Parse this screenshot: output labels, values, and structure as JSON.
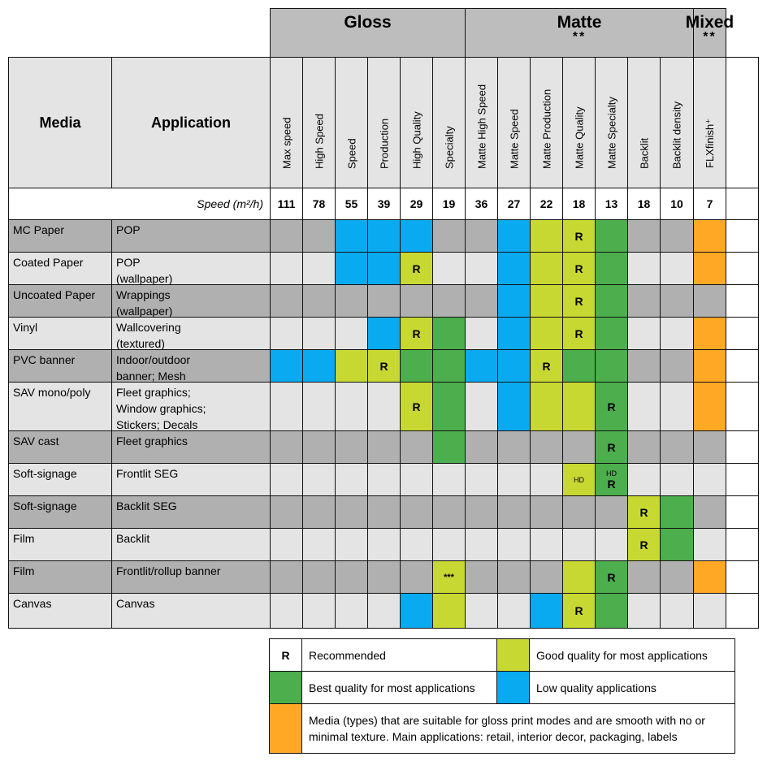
{
  "colors": {
    "gray_dark": "#b0b0b0",
    "gray_light": "#e4e4e4",
    "white": "#ffffff",
    "blue": "#0aaaf0",
    "lime": "#c8d833",
    "green": "#4cae4c",
    "orange": "#ffa826",
    "header_group": "#bdbdbd"
  },
  "groups": [
    {
      "label": "Gloss",
      "sub": ""
    },
    {
      "label": "Matte",
      "sub": "**"
    },
    {
      "label": "Mixed",
      "sub": "**"
    }
  ],
  "headers": {
    "media": "Media",
    "application": "Application"
  },
  "columns": [
    "Max speed",
    "High Speed",
    "Speed",
    "Production",
    "High Quality",
    "Specialty",
    "Matte High Speed",
    "Matte Speed",
    "Matte Production",
    "Matte Quality",
    "Matte Specialty",
    "Backlit",
    "Backlit density",
    "FLXfinish⁺",
    ""
  ],
  "speed_label": "Speed (m²/h)",
  "speeds": [
    "111",
    "78",
    "55",
    "39",
    "29",
    "19",
    "36",
    "27",
    "22",
    "18",
    "13",
    "18",
    "10",
    "7",
    ""
  ],
  "rows": [
    {
      "media": "MC Paper",
      "application": [
        "POP"
      ],
      "shade": "dark",
      "cells": [
        "",
        "",
        "blue",
        "blue",
        "blue",
        "",
        "",
        "blue",
        "lime",
        "lime",
        "green",
        "",
        "",
        "orange",
        "white"
      ],
      "marks": [
        "",
        "",
        "",
        "",
        "",
        "",
        "",
        "",
        "",
        "R",
        "",
        "",
        "",
        "",
        ""
      ]
    },
    {
      "media": "Coated Paper",
      "application": [
        "POP",
        "(wallpaper)"
      ],
      "shade": "light",
      "cells": [
        "",
        "",
        "blue",
        "blue",
        "lime",
        "",
        "",
        "blue",
        "lime",
        "lime",
        "green",
        "",
        "",
        "orange",
        "white"
      ],
      "marks": [
        "",
        "",
        "",
        "",
        "R",
        "",
        "",
        "",
        "",
        "R",
        "",
        "",
        "",
        "",
        ""
      ]
    },
    {
      "media": "Uncoated Paper",
      "application": [
        "Wrappings",
        "(wallpaper)"
      ],
      "shade": "dark",
      "cells": [
        "",
        "",
        "",
        "",
        "",
        "",
        "",
        "blue",
        "lime",
        "lime",
        "green",
        "",
        "",
        "",
        "white"
      ],
      "marks": [
        "",
        "",
        "",
        "",
        "",
        "",
        "",
        "",
        "",
        "R",
        "",
        "",
        "",
        "",
        ""
      ]
    },
    {
      "media": "Vinyl",
      "application": [
        "Wallcovering",
        "(textured)"
      ],
      "shade": "light",
      "cells": [
        "",
        "",
        "",
        "blue",
        "lime",
        "green",
        "",
        "blue",
        "lime",
        "lime",
        "green",
        "",
        "",
        "orange",
        "white"
      ],
      "marks": [
        "",
        "",
        "",
        "",
        "R",
        "",
        "",
        "",
        "",
        "R",
        "",
        "",
        "",
        "",
        ""
      ]
    },
    {
      "media": "PVC banner",
      "application": [
        "Indoor/outdoor",
        "banner; Mesh"
      ],
      "shade": "dark",
      "cells": [
        "blue",
        "blue",
        "lime",
        "lime",
        "green",
        "green",
        "blue",
        "blue",
        "lime",
        "green",
        "green",
        "",
        "",
        "orange",
        "white"
      ],
      "marks": [
        "",
        "",
        "",
        "R",
        "",
        "",
        "",
        "",
        "R",
        "",
        "",
        "",
        "",
        "",
        ""
      ]
    },
    {
      "media": "SAV mono/poly",
      "application": [
        "Fleet graphics;",
        "Window graphics;",
        "Stickers; Decals"
      ],
      "shade": "light",
      "cells": [
        "",
        "",
        "",
        "",
        "lime",
        "green",
        "",
        "blue",
        "lime",
        "lime",
        "green",
        "",
        "",
        "orange",
        "white"
      ],
      "marks": [
        "",
        "",
        "",
        "",
        "R",
        "",
        "",
        "",
        "",
        "",
        "R",
        "",
        "",
        "",
        ""
      ]
    },
    {
      "media": "SAV cast",
      "application": [
        "Fleet graphics"
      ],
      "shade": "dark",
      "cells": [
        "",
        "",
        "",
        "",
        "",
        "green",
        "",
        "",
        "",
        "",
        "green",
        "",
        "",
        "",
        "white"
      ],
      "marks": [
        "",
        "",
        "",
        "",
        "",
        "",
        "",
        "",
        "",
        "",
        "R",
        "",
        "",
        "",
        ""
      ]
    },
    {
      "media": "Soft-signage",
      "application": [
        "Frontlit SEG"
      ],
      "shade": "light",
      "cells": [
        "",
        "",
        "",
        "",
        "",
        "",
        "",
        "",
        "",
        "lime",
        "green",
        "",
        "",
        "",
        "white"
      ],
      "marks": [
        "",
        "",
        "",
        "",
        "",
        "",
        "",
        "",
        "",
        "HD",
        "HD|R",
        "",
        "",
        "",
        ""
      ]
    },
    {
      "media": "Soft-signage",
      "application": [
        "Backlit SEG"
      ],
      "shade": "dark",
      "cells": [
        "",
        "",
        "",
        "",
        "",
        "",
        "",
        "",
        "",
        "",
        "",
        "lime",
        "green",
        "",
        "white"
      ],
      "marks": [
        "",
        "",
        "",
        "",
        "",
        "",
        "",
        "",
        "",
        "",
        "",
        "R",
        "",
        "",
        ""
      ]
    },
    {
      "media": "Film",
      "application": [
        "Backlit"
      ],
      "shade": "light",
      "cells": [
        "",
        "",
        "",
        "",
        "",
        "",
        "",
        "",
        "",
        "",
        "",
        "lime",
        "green",
        "",
        "white"
      ],
      "marks": [
        "",
        "",
        "",
        "",
        "",
        "",
        "",
        "",
        "",
        "",
        "",
        "R",
        "",
        "",
        ""
      ]
    },
    {
      "media": "Film",
      "application": [
        "Frontlit/rollup banner"
      ],
      "shade": "dark",
      "cells": [
        "",
        "",
        "",
        "",
        "",
        "lime",
        "",
        "",
        "",
        "lime",
        "green",
        "",
        "",
        "orange",
        "white"
      ],
      "marks": [
        "",
        "",
        "",
        "",
        "",
        "***",
        "",
        "",
        "",
        "",
        "R",
        "",
        "",
        "",
        ""
      ]
    },
    {
      "media": "Canvas",
      "application": [
        "Canvas"
      ],
      "shade": "light",
      "cells": [
        "",
        "",
        "",
        "",
        "blue",
        "lime",
        "",
        "",
        "blue",
        "lime",
        "green",
        "",
        "",
        "",
        "white"
      ],
      "marks": [
        "",
        "",
        "",
        "",
        "",
        "",
        "",
        "",
        "",
        "R",
        "",
        "",
        "",
        "",
        ""
      ]
    }
  ],
  "legend": {
    "recommended_symbol": "R",
    "recommended": "Recommended",
    "good": "Good quality for most applications",
    "best": "Best quality for most applications",
    "low": "Low quality applications",
    "gloss_suitable": [
      "Media (types) that are suitable for gloss print modes and are smooth with no or",
      "minimal texture. Main applications: retail, interior decor, packaging, labels"
    ]
  }
}
